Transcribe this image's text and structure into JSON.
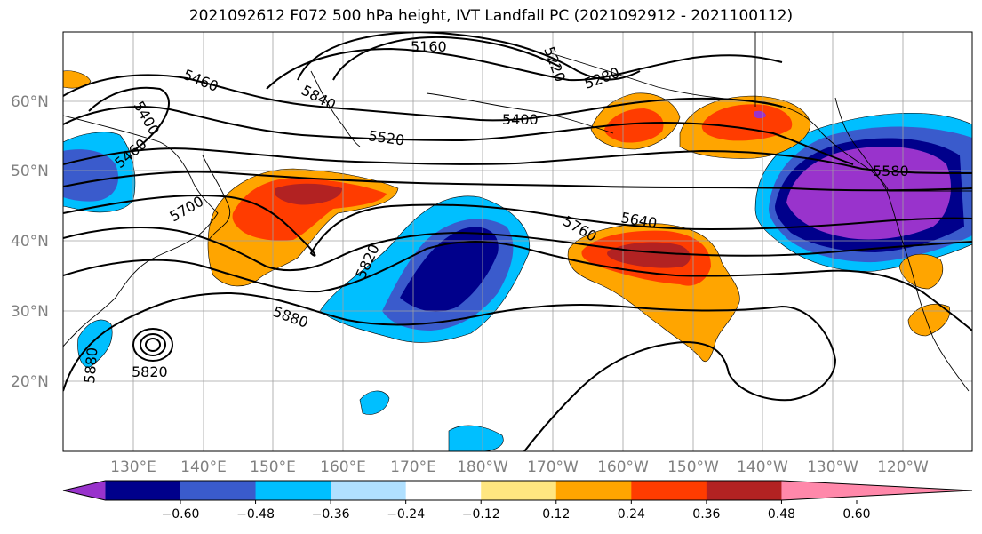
{
  "title": "2021092612 F072 500 hPa height, IVT Landfall PC (2021092912 - 2021100112)",
  "lat_labels": [
    "60°N",
    "50°N",
    "40°N",
    "30°N",
    "20°N"
  ],
  "lon_labels": [
    "130°E",
    "140°E",
    "150°E",
    "160°E",
    "170°E",
    "180°W",
    "170°W",
    "160°W",
    "150°W",
    "140°W",
    "130°W",
    "120°W"
  ],
  "contour_labels": [
    "5160",
    "5220",
    "5280",
    "5460",
    "5400",
    "5840",
    "5520",
    "5400",
    "5460",
    "5580",
    "5700",
    "5640",
    "5760",
    "5820",
    "5880",
    "5880",
    "5820"
  ],
  "colorbar": {
    "colors": [
      "#9933cc",
      "#00008b",
      "#3a5bcc",
      "#00bfff",
      "#b0e0ff",
      "#ffffff",
      "#ffe680",
      "#ffa500",
      "#ff3c00",
      "#b22222",
      "#ff88aa"
    ],
    "tick_labels": [
      "−0.60",
      "−0.48",
      "−0.36",
      "−0.24",
      "−0.12",
      "0.12",
      "0.24",
      "0.36",
      "0.48",
      "0.60"
    ]
  }
}
